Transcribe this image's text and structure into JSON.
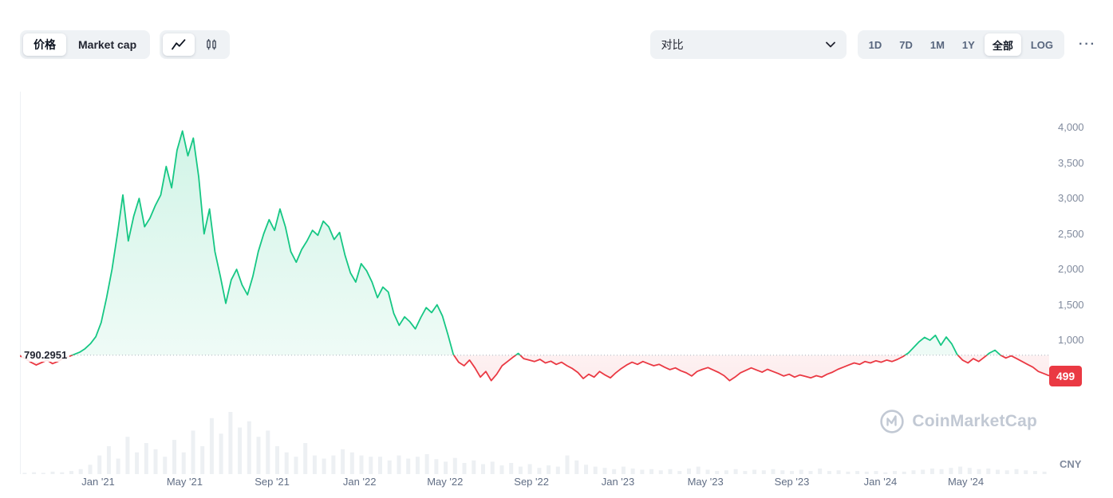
{
  "toolbar": {
    "metric_tabs": [
      {
        "name": "price",
        "label": "价格",
        "active": true
      },
      {
        "name": "market-cap",
        "label": "Market cap",
        "active": false
      }
    ],
    "chart_type_tabs": [
      {
        "name": "line-chart",
        "active": true
      },
      {
        "name": "candlestick-chart",
        "active": false
      }
    ],
    "compare": {
      "label": "对比"
    },
    "range_tabs": [
      {
        "name": "1d",
        "label": "1D",
        "active": false
      },
      {
        "name": "7d",
        "label": "7D",
        "active": false
      },
      {
        "name": "1m",
        "label": "1M",
        "active": false
      },
      {
        "name": "1y",
        "label": "1Y",
        "active": false
      },
      {
        "name": "all",
        "label": "全部",
        "active": true
      },
      {
        "name": "log",
        "label": "LOG",
        "active": false
      }
    ],
    "more_label": "···"
  },
  "watermark": {
    "text": "CoinMarketCap"
  },
  "chart_data": {
    "type": "area",
    "currency": "CNY",
    "baseline": {
      "value": 790.2951,
      "label": "790.2951"
    },
    "last_price": {
      "value": 499,
      "label": "499"
    },
    "y_axis": {
      "ticks": [
        {
          "value": 4000,
          "label": "4,000"
        },
        {
          "value": 3500,
          "label": "3,500"
        },
        {
          "value": 3000,
          "label": "3,000"
        },
        {
          "value": 2500,
          "label": "2,500"
        },
        {
          "value": 2000,
          "label": "2,000"
        },
        {
          "value": 1500,
          "label": "1,500"
        },
        {
          "value": 1000,
          "label": "1,000"
        }
      ]
    },
    "x_axis": {
      "ticks": [
        {
          "label": "Jan '21",
          "pos": 0.076
        },
        {
          "label": "May '21",
          "pos": 0.16
        },
        {
          "label": "Sep '21",
          "pos": 0.245
        },
        {
          "label": "Jan '22",
          "pos": 0.33
        },
        {
          "label": "May '22",
          "pos": 0.413
        },
        {
          "label": "Sep '22",
          "pos": 0.497
        },
        {
          "label": "Jan '23",
          "pos": 0.581
        },
        {
          "label": "May '23",
          "pos": 0.666
        },
        {
          "label": "Sep '23",
          "pos": 0.75
        },
        {
          "label": "Jan '24",
          "pos": 0.836
        },
        {
          "label": "May '24",
          "pos": 0.919
        }
      ]
    },
    "series": [
      {
        "name": "price",
        "values": [
          780,
          740,
          690,
          650,
          685,
          720,
          670,
          700,
          745,
          770,
          800,
          830,
          880,
          950,
          1050,
          1250,
          1600,
          2000,
          2500,
          3050,
          2400,
          2750,
          3000,
          2600,
          2720,
          2900,
          3050,
          3450,
          3150,
          3680,
          3950,
          3600,
          3850,
          3300,
          2500,
          2850,
          2250,
          1900,
          1520,
          1850,
          2000,
          1780,
          1640,
          1900,
          2250,
          2500,
          2700,
          2550,
          2850,
          2600,
          2250,
          2100,
          2280,
          2400,
          2550,
          2480,
          2680,
          2600,
          2420,
          2520,
          2200,
          1950,
          1820,
          2080,
          1980,
          1820,
          1600,
          1750,
          1680,
          1380,
          1210,
          1330,
          1260,
          1160,
          1320,
          1460,
          1390,
          1500,
          1340,
          1080,
          800,
          690,
          640,
          720,
          610,
          480,
          560,
          430,
          520,
          640,
          700,
          760,
          815,
          740,
          720,
          700,
          730,
          680,
          705,
          660,
          690,
          640,
          600,
          545,
          460,
          520,
          480,
          560,
          510,
          470,
          540,
          600,
          650,
          690,
          660,
          700,
          670,
          640,
          660,
          620,
          585,
          610,
          570,
          540,
          495,
          560,
          590,
          615,
          580,
          545,
          500,
          430,
          480,
          540,
          575,
          610,
          580,
          550,
          590,
          560,
          530,
          495,
          520,
          480,
          510,
          490,
          470,
          500,
          480,
          520,
          550,
          590,
          620,
          650,
          680,
          660,
          700,
          680,
          710,
          690,
          720,
          700,
          730,
          770,
          820,
          900,
          980,
          1040,
          1000,
          1070,
          930,
          1045,
          950,
          800,
          720,
          680,
          740,
          700,
          760,
          820,
          860,
          790,
          750,
          780,
          740,
          700,
          660,
          620,
          560,
          530,
          499
        ]
      }
    ],
    "volume": [
      2,
      3,
      2,
      4,
      3,
      5,
      8,
      15,
      30,
      45,
      25,
      60,
      35,
      50,
      40,
      28,
      55,
      35,
      70,
      45,
      90,
      65,
      100,
      75,
      85,
      60,
      70,
      45,
      35,
      28,
      50,
      30,
      25,
      30,
      40,
      35,
      30,
      28,
      28,
      22,
      30,
      25,
      28,
      32,
      24,
      20,
      26,
      18,
      22,
      16,
      20,
      14,
      18,
      12,
      16,
      10,
      14,
      12,
      30,
      22,
      15,
      12,
      10,
      8,
      12,
      9,
      7,
      8,
      6,
      8,
      5,
      9,
      12,
      7,
      5,
      6,
      8,
      5,
      7,
      6,
      8,
      6,
      5,
      7,
      5,
      9,
      5,
      6,
      4,
      5,
      4,
      5,
      3,
      5,
      4,
      6,
      7,
      9,
      8,
      10,
      12,
      10,
      8,
      9,
      7,
      6,
      8,
      6,
      5,
      4
    ],
    "colors": {
      "up": "#16c784",
      "down": "#ea3943",
      "baseline_line": "#a8b1bd",
      "volume_bar": "#edf0f3",
      "badge_bg": "#ea3943",
      "badge_text": "#ffffff"
    }
  }
}
